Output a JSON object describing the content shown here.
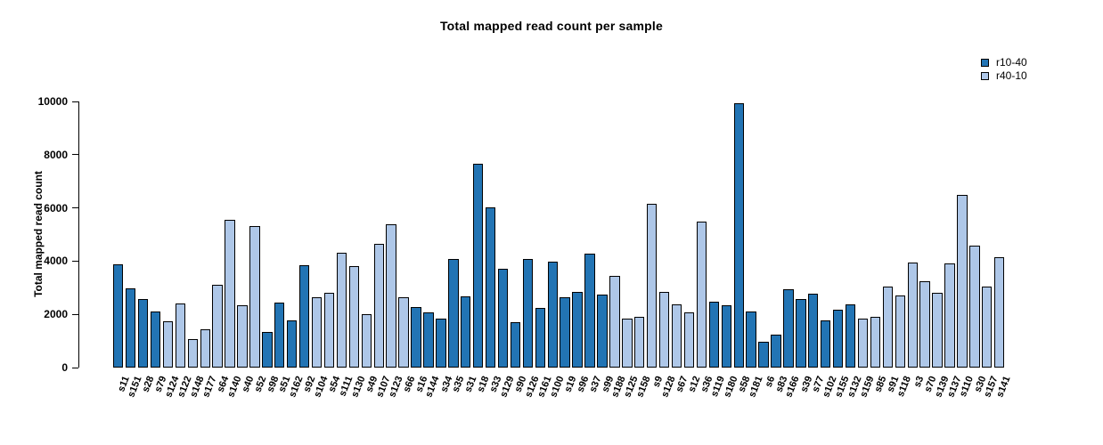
{
  "chart_data": {
    "type": "bar",
    "title": "Total mapped read count per sample",
    "xlabel": "",
    "ylabel": "Total mapped read count",
    "ylim": [
      0,
      10000
    ],
    "yticks": [
      0,
      2000,
      4000,
      6000,
      8000,
      10000
    ],
    "grid": false,
    "legend_position": "top-right",
    "series": [
      {
        "name": "r10-40",
        "color": "#2274B4"
      },
      {
        "name": "r40-10",
        "color": "#AEC7E8"
      }
    ],
    "bars": [
      {
        "sample": "s11",
        "value": 3890,
        "series": "r10-40"
      },
      {
        "sample": "s151",
        "value": 2980,
        "series": "r10-40"
      },
      {
        "sample": "s28",
        "value": 2580,
        "series": "r10-40"
      },
      {
        "sample": "s79",
        "value": 2110,
        "series": "r10-40"
      },
      {
        "sample": "s124",
        "value": 1730,
        "series": "r40-10"
      },
      {
        "sample": "s122",
        "value": 2420,
        "series": "r40-10"
      },
      {
        "sample": "s148",
        "value": 1080,
        "series": "r40-10"
      },
      {
        "sample": "s177",
        "value": 1440,
        "series": "r40-10"
      },
      {
        "sample": "s64",
        "value": 3120,
        "series": "r40-10"
      },
      {
        "sample": "s140",
        "value": 5550,
        "series": "r40-10"
      },
      {
        "sample": "s40",
        "value": 2330,
        "series": "r40-10"
      },
      {
        "sample": "s52",
        "value": 5330,
        "series": "r40-10"
      },
      {
        "sample": "s98",
        "value": 1350,
        "series": "r10-40"
      },
      {
        "sample": "s51",
        "value": 2440,
        "series": "r10-40"
      },
      {
        "sample": "s162",
        "value": 1780,
        "series": "r10-40"
      },
      {
        "sample": "s92",
        "value": 3850,
        "series": "r10-40"
      },
      {
        "sample": "s104",
        "value": 2630,
        "series": "r40-10"
      },
      {
        "sample": "s54",
        "value": 2800,
        "series": "r40-10"
      },
      {
        "sample": "s111",
        "value": 4300,
        "series": "r40-10"
      },
      {
        "sample": "s130",
        "value": 3820,
        "series": "r40-10"
      },
      {
        "sample": "s49",
        "value": 2000,
        "series": "r40-10"
      },
      {
        "sample": "s107",
        "value": 4660,
        "series": "r40-10"
      },
      {
        "sample": "s123",
        "value": 5390,
        "series": "r40-10"
      },
      {
        "sample": "s66",
        "value": 2630,
        "series": "r40-10"
      },
      {
        "sample": "s16",
        "value": 2260,
        "series": "r10-40"
      },
      {
        "sample": "s144",
        "value": 2090,
        "series": "r10-40"
      },
      {
        "sample": "s34",
        "value": 1840,
        "series": "r10-40"
      },
      {
        "sample": "s35",
        "value": 4080,
        "series": "r10-40"
      },
      {
        "sample": "s31",
        "value": 2680,
        "series": "r10-40"
      },
      {
        "sample": "s18",
        "value": 7650,
        "series": "r10-40"
      },
      {
        "sample": "s33",
        "value": 6030,
        "series": "r10-40"
      },
      {
        "sample": "s129",
        "value": 3700,
        "series": "r10-40"
      },
      {
        "sample": "s90",
        "value": 1720,
        "series": "r10-40"
      },
      {
        "sample": "s126",
        "value": 4090,
        "series": "r10-40"
      },
      {
        "sample": "s161",
        "value": 2240,
        "series": "r10-40"
      },
      {
        "sample": "s100",
        "value": 3970,
        "series": "r10-40"
      },
      {
        "sample": "s19",
        "value": 2640,
        "series": "r10-40"
      },
      {
        "sample": "s96",
        "value": 2840,
        "series": "r10-40"
      },
      {
        "sample": "s37",
        "value": 4270,
        "series": "r10-40"
      },
      {
        "sample": "s99",
        "value": 2740,
        "series": "r10-40"
      },
      {
        "sample": "s188",
        "value": 3450,
        "series": "r40-10"
      },
      {
        "sample": "s125",
        "value": 1840,
        "series": "r40-10"
      },
      {
        "sample": "s158",
        "value": 1910,
        "series": "r40-10"
      },
      {
        "sample": "s9",
        "value": 6160,
        "series": "r40-10"
      },
      {
        "sample": "s128",
        "value": 2840,
        "series": "r40-10"
      },
      {
        "sample": "s67",
        "value": 2370,
        "series": "r40-10"
      },
      {
        "sample": "s12",
        "value": 2090,
        "series": "r40-10"
      },
      {
        "sample": "s36",
        "value": 5470,
        "series": "r40-10"
      },
      {
        "sample": "s119",
        "value": 2480,
        "series": "r10-40"
      },
      {
        "sample": "s180",
        "value": 2330,
        "series": "r10-40"
      },
      {
        "sample": "s58",
        "value": 9930,
        "series": "r10-40"
      },
      {
        "sample": "s181",
        "value": 2110,
        "series": "r10-40"
      },
      {
        "sample": "s6",
        "value": 980,
        "series": "r10-40"
      },
      {
        "sample": "s83",
        "value": 1250,
        "series": "r10-40"
      },
      {
        "sample": "s166",
        "value": 2950,
        "series": "r10-40"
      },
      {
        "sample": "s39",
        "value": 2580,
        "series": "r10-40"
      },
      {
        "sample": "s77",
        "value": 2780,
        "series": "r10-40"
      },
      {
        "sample": "s102",
        "value": 1760,
        "series": "r10-40"
      },
      {
        "sample": "s155",
        "value": 2170,
        "series": "r10-40"
      },
      {
        "sample": "s132",
        "value": 2390,
        "series": "r10-40"
      },
      {
        "sample": "s159",
        "value": 1840,
        "series": "r40-10"
      },
      {
        "sample": "s85",
        "value": 1920,
        "series": "r40-10"
      },
      {
        "sample": "s91",
        "value": 3030,
        "series": "r40-10"
      },
      {
        "sample": "s118",
        "value": 2710,
        "series": "r40-10"
      },
      {
        "sample": "s3",
        "value": 3940,
        "series": "r40-10"
      },
      {
        "sample": "s70",
        "value": 3230,
        "series": "r40-10"
      },
      {
        "sample": "s139",
        "value": 2810,
        "series": "r40-10"
      },
      {
        "sample": "s137",
        "value": 3900,
        "series": "r40-10"
      },
      {
        "sample": "s110",
        "value": 6500,
        "series": "r40-10"
      },
      {
        "sample": "s30",
        "value": 4570,
        "series": "r40-10"
      },
      {
        "sample": "s157",
        "value": 3030,
        "series": "r40-10"
      },
      {
        "sample": "s141",
        "value": 4150,
        "series": "r40-10"
      }
    ]
  }
}
